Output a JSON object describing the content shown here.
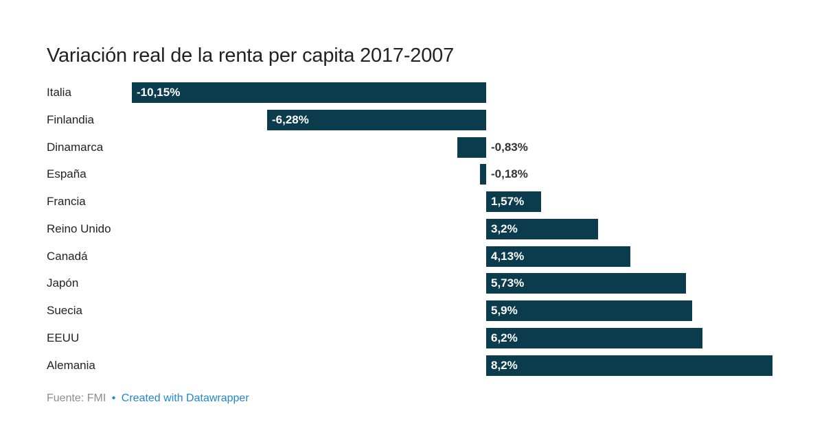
{
  "title": "Variación real de la renta per capita 2017-2007",
  "footer": {
    "source_label": "Fuente:",
    "source_value": "FMI",
    "separator": "•",
    "credit_link": "Created with Datawrapper"
  },
  "colors": {
    "background": "#ffffff",
    "bar": "#0b3c4d",
    "title_text": "#222222",
    "category_text": "#222222",
    "value_label_inside": "#ffffff",
    "value_label_outside": "#333333",
    "source_text": "#8c8c8c",
    "link_blue": "#1f87cb"
  },
  "chart_data": {
    "type": "bar",
    "orientation": "horizontal",
    "title": "Variación real de la renta per capita 2017-2007",
    "xlabel": "",
    "ylabel": "",
    "xlim": [
      -10.15,
      8.2
    ],
    "grid": false,
    "legend": "none",
    "value_unit": "%",
    "categories": [
      "Italia",
      "Finlandia",
      "Dinamarca",
      "España",
      "Francia",
      "Reino Unido",
      "Canadá",
      "Japón",
      "Suecia",
      "EEUU",
      "Alemania"
    ],
    "values": [
      -10.15,
      -6.28,
      -0.83,
      -0.18,
      1.57,
      3.2,
      4.13,
      5.73,
      5.9,
      6.2,
      8.2
    ],
    "value_labels": [
      "-10,15%",
      "-6,28%",
      "-0,83%",
      "-0,18%",
      "1,57%",
      "3,2%",
      "4,13%",
      "5,73%",
      "5,9%",
      "6,2%",
      "8,2%"
    ],
    "source": "FMI"
  }
}
